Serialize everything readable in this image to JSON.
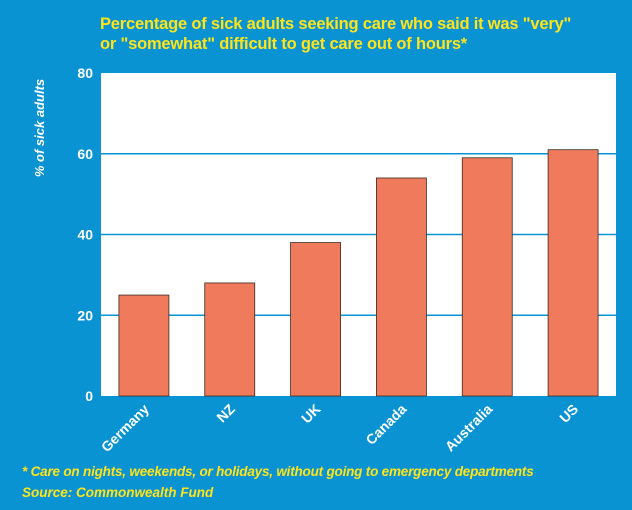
{
  "colors": {
    "background": "#0a93d3",
    "plot_background": "#ffffff",
    "bar": "#f07b5c",
    "title_text": "#ffe41a",
    "axis_text": "#ffffff",
    "grid": "#0a93d3"
  },
  "title_line1": "Percentage of sick adults seeking care who said it was \"very\"",
  "title_line2": "or \"somewhat\" difficult to get care out of hours*",
  "footnote": "* Care on nights, weekends, or holidays, without going to emergency departments",
  "source": "Source: Commonwealth Fund",
  "chart_data": {
    "type": "bar",
    "title": "Percentage of sick adults seeking care who said it was \"very\" or \"somewhat\" difficult to get care out of hours*",
    "xlabel": "",
    "ylabel": "% of sick adults",
    "categories": [
      "Germany",
      "NZ",
      "UK",
      "Canada",
      "Australia",
      "US"
    ],
    "values": [
      25,
      28,
      38,
      54,
      59,
      61
    ],
    "ylim": [
      0,
      80
    ],
    "yticks": [
      "0",
      "20",
      "40",
      "60",
      "80"
    ],
    "grid": true,
    "legend": "none"
  }
}
